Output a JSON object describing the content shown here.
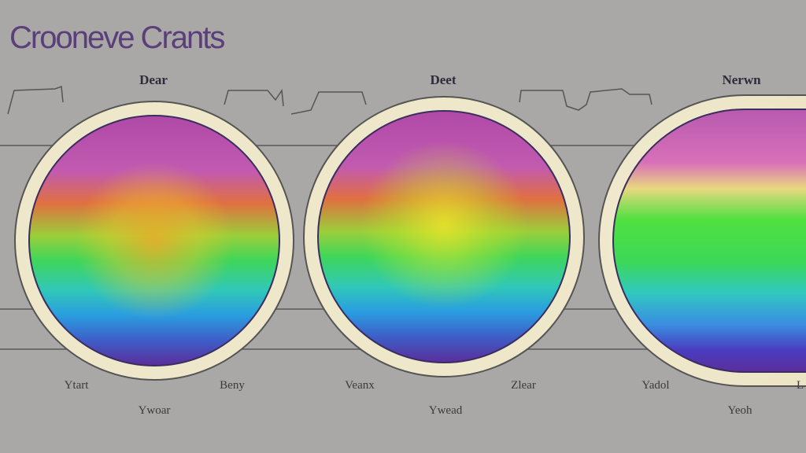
{
  "title": "Croonevе Crants",
  "charts": [
    {
      "top_label": "Dear",
      "bottom_left": "Ytart",
      "bottom_right": "Beny",
      "caption": "Ywoar"
    },
    {
      "top_label": "Deet",
      "bottom_left": "Veanx",
      "bottom_right": "Zlear",
      "caption": "Ywead"
    },
    {
      "top_label": "Nerwn",
      "bottom_left": "Yadol",
      "bottom_right": "L",
      "caption": "Yeoh"
    }
  ],
  "colors": {
    "background": "#a9a8a6",
    "title": "#5a3f7a",
    "rim": "#ece4c4"
  }
}
